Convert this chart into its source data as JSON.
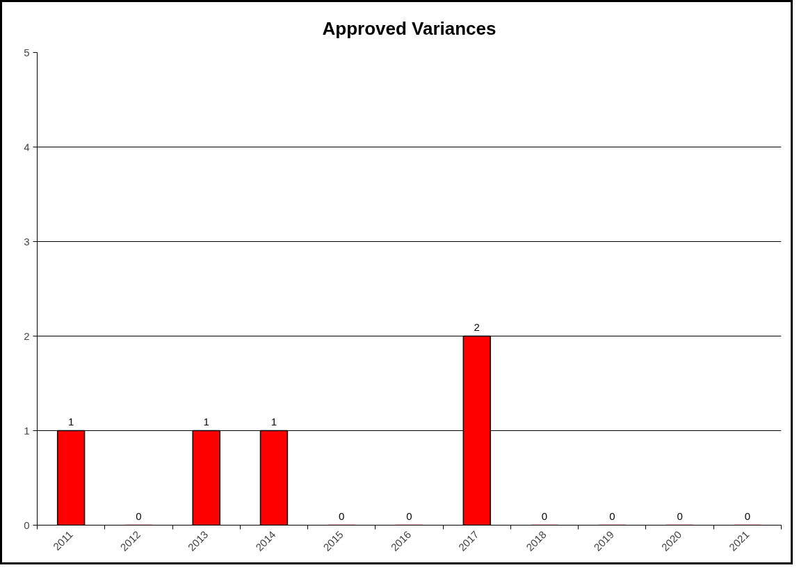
{
  "chart_data": {
    "type": "bar",
    "title": "Approved Variances",
    "categories": [
      "2011",
      "2012",
      "2013",
      "2014",
      "2015",
      "2016",
      "2017",
      "2018",
      "2019",
      "2020",
      "2021"
    ],
    "values": [
      1,
      0,
      1,
      1,
      0,
      0,
      2,
      0,
      0,
      0,
      0
    ],
    "color": "#ff0000",
    "ylim": [
      0,
      5
    ],
    "yticks": [
      0,
      1,
      2,
      3,
      4,
      5
    ],
    "grid": "y",
    "data_labels": true
  }
}
